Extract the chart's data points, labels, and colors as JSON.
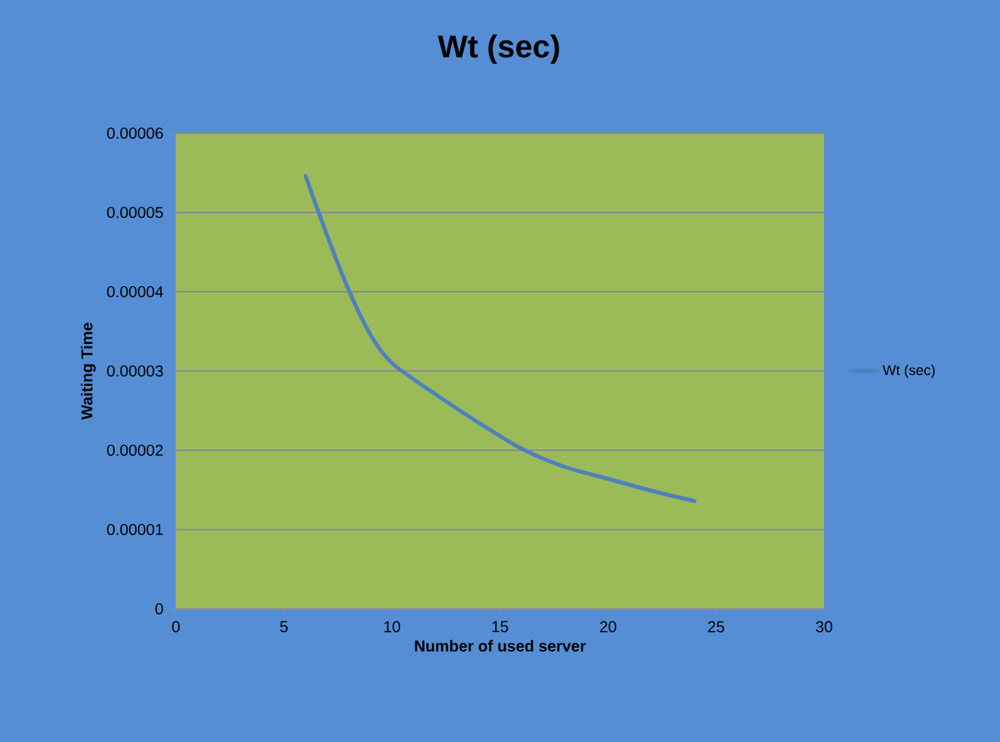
{
  "chart_data": {
    "type": "line",
    "title": "Wt (sec)",
    "xlabel": "Number of used server",
    "ylabel": "Waiting Time",
    "x": [
      6,
      7,
      8,
      9,
      10,
      12,
      14,
      16,
      18,
      20,
      22,
      24
    ],
    "series": [
      {
        "name": "Wt (sec)",
        "color": "#4f81bd",
        "values": [
          5.46e-05,
          4.71e-05,
          4.02e-05,
          3.46e-05,
          3.1e-05,
          2.71e-05,
          2.35e-05,
          2.02e-05,
          1.79e-05,
          1.64e-05,
          1.49e-05,
          1.36e-05
        ]
      }
    ],
    "xlim": [
      0,
      30
    ],
    "xticks": [
      0,
      5,
      10,
      15,
      20,
      25,
      30
    ],
    "ylim": [
      0,
      6e-05
    ],
    "yticks": [
      {
        "value": 0,
        "label": "0"
      },
      {
        "value": 1e-05,
        "label": "0.00001"
      },
      {
        "value": 2e-05,
        "label": "0.00002"
      },
      {
        "value": 3e-05,
        "label": "0.00003"
      },
      {
        "value": 4e-05,
        "label": "0.00004"
      },
      {
        "value": 5e-05,
        "label": "0.00005"
      },
      {
        "value": 6e-05,
        "label": "0.00006"
      }
    ],
    "grid": "y",
    "legend": "right",
    "marker": "none",
    "line_style": "solid"
  }
}
